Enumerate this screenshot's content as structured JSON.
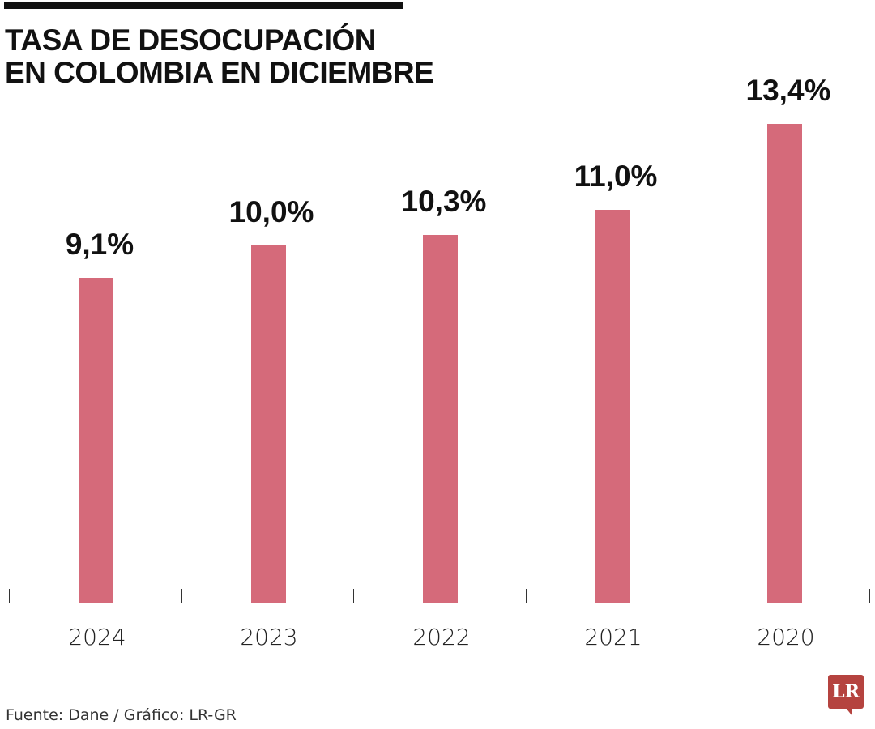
{
  "header": {
    "title_line1": "TASA DE DESOCUPACIÓN",
    "title_line2": "EN COLOMBIA EN DICIEMBRE"
  },
  "colors": {
    "bar": "#d56a7a",
    "text": "#111111",
    "axis": "#333333",
    "logo": "#b5433f"
  },
  "chart_data": {
    "type": "bar",
    "title": "TASA DE DESOCUPACIÓN EN COLOMBIA EN DICIEMBRE",
    "categories": [
      "2024",
      "2023",
      "2022",
      "2021",
      "2020"
    ],
    "values": [
      9.1,
      10.0,
      10.3,
      11.0,
      13.4
    ],
    "value_labels": [
      "9,1%",
      "10,0%",
      "10,3%",
      "11,0%",
      "13,4%"
    ],
    "xlabel": "",
    "ylabel": "",
    "unit": "%",
    "ylim": [
      0,
      13.4
    ],
    "grid": false,
    "legend": null
  },
  "footer": {
    "source": "Fuente: Dane / Gráfico: LR-GR",
    "logo_text": "LR"
  }
}
